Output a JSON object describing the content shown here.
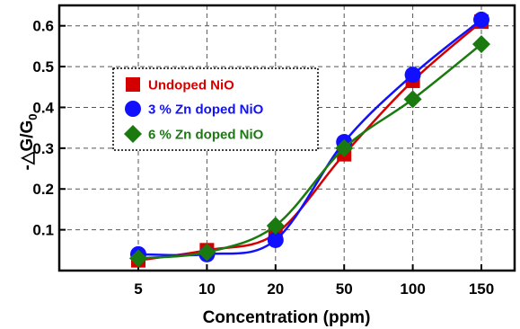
{
  "chart_data": {
    "type": "line",
    "title": "",
    "xlabel": "Concentration (ppm)",
    "ylabel_main": "-△G/G",
    "ylabel_sub": "0",
    "categories": [
      "5",
      "10",
      "20",
      "50",
      "100",
      "150"
    ],
    "yticks": [
      "0.1",
      "0.2",
      "0.3",
      "0.4",
      "0.5",
      "0.6"
    ],
    "ylim": [
      0.0,
      0.65
    ],
    "grid": true,
    "legend_position": "upper-left",
    "series": [
      {
        "name": "Undoped NiO",
        "color": "#d40000",
        "marker": "square",
        "values": [
          0.025,
          0.05,
          0.09,
          0.285,
          0.465,
          0.61
        ]
      },
      {
        "name": "3 % Zn doped NiO",
        "color": "#1010ff",
        "marker": "circle",
        "values": [
          0.04,
          0.04,
          0.075,
          0.315,
          0.48,
          0.615
        ]
      },
      {
        "name": "6 % Zn doped NiO",
        "color": "#1a7a10",
        "marker": "diamond",
        "values": [
          0.03,
          0.045,
          0.11,
          0.3,
          0.42,
          0.555
        ]
      }
    ]
  }
}
